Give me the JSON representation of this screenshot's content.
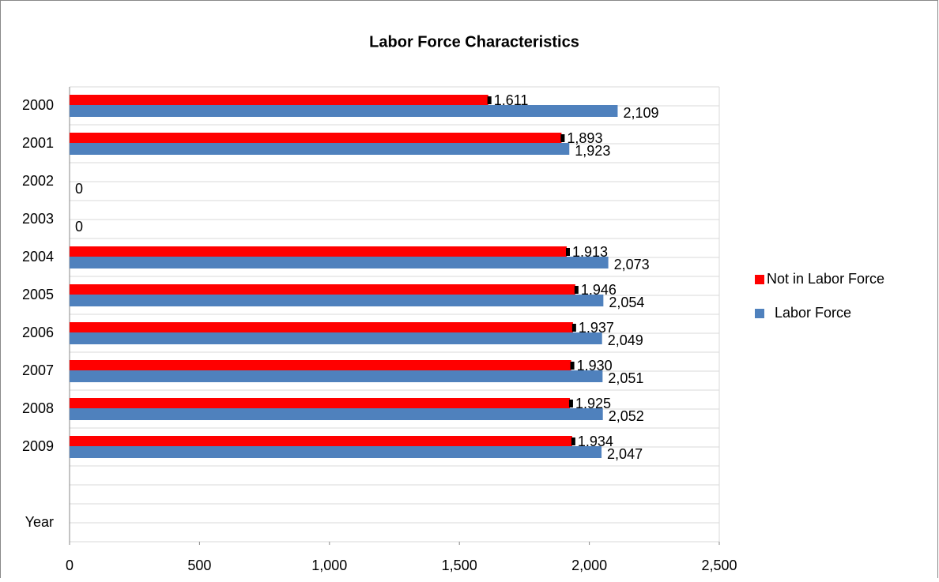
{
  "chart_data": {
    "type": "barh",
    "title": "Labor Force Characteristics",
    "categories": [
      "2000",
      "2001",
      "2002",
      "2003",
      "2004",
      "2005",
      "2006",
      "2007",
      "2008",
      "2009",
      null,
      "Year"
    ],
    "series": [
      {
        "name": "Not in Labor Force",
        "color": "#ff0000",
        "values": [
          1611,
          1893,
          null,
          null,
          1913,
          1946,
          1937,
          1930,
          1925,
          1934,
          null,
          null
        ],
        "value_labels": [
          "1,611",
          "1,893",
          null,
          null,
          "1,913",
          "1,946",
          "1,937",
          "1,930",
          "1,925",
          "1,934",
          null,
          null
        ]
      },
      {
        "name": "Labor Force",
        "color": "#4f81bd",
        "values": [
          2109,
          1923,
          0,
          0,
          2073,
          2054,
          2049,
          2051,
          2052,
          2047,
          null,
          null
        ],
        "value_labels": [
          "2,109",
          "1,923",
          "0",
          "0",
          "2,073",
          "2,054",
          "2,049",
          "2,051",
          "2,052",
          "2,047",
          null,
          null
        ]
      }
    ],
    "xlim": [
      0,
      2500
    ],
    "xticks": [
      0,
      500,
      {
        "value": 1000,
        "label": "1,000"
      },
      {
        "value": 1500,
        "label": "1,500"
      },
      {
        "value": 2000,
        "label": "2,000"
      },
      {
        "value": 2500,
        "label": "2,500"
      }
    ],
    "legend": "right"
  }
}
